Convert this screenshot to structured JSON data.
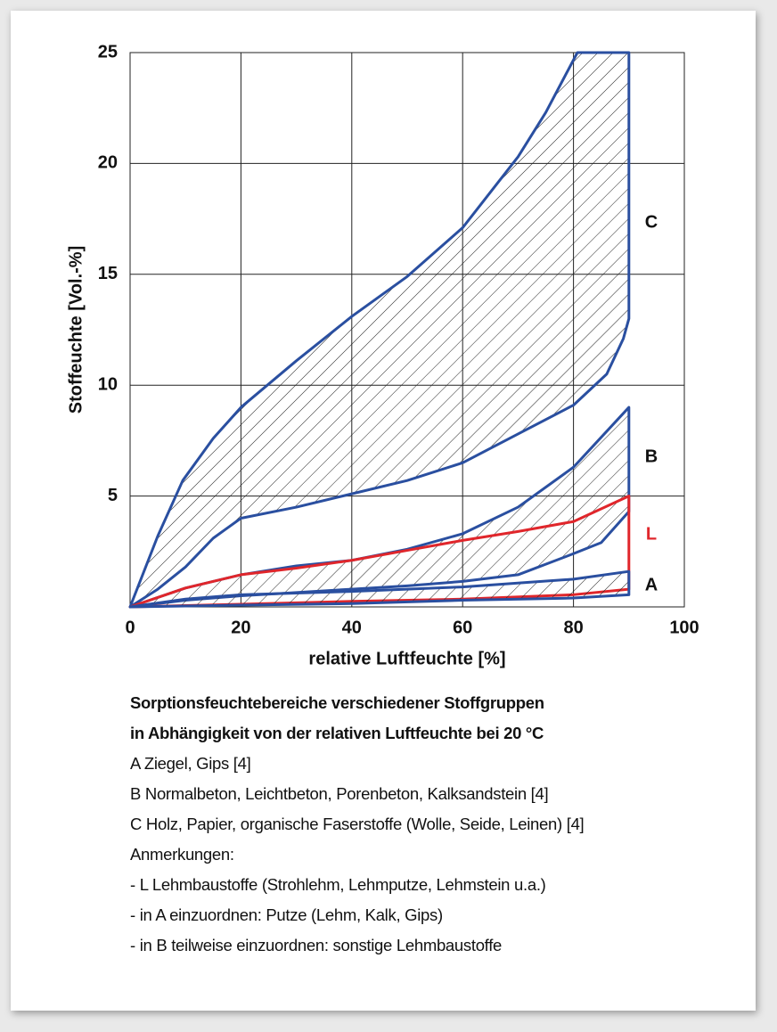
{
  "chart_data": {
    "type": "range-area",
    "xlabel": "relative Luftfeuchte [%]",
    "ylabel": "Stoffeuchte [Vol.-%]",
    "xlim": [
      0,
      100
    ],
    "xticks": [
      0,
      20,
      40,
      60,
      80,
      100
    ],
    "ylim": [
      0,
      25
    ],
    "yticks": [
      5,
      10,
      15,
      20,
      25
    ],
    "grid": true,
    "series": [
      {
        "name": "C",
        "color": "#2a4fa0",
        "hatch": true,
        "upper": {
          "x": [
            0,
            5,
            9.5,
            15,
            20,
            30,
            40,
            50,
            60,
            70,
            75,
            80.7,
            90
          ],
          "y": [
            0,
            3.2,
            5.7,
            7.6,
            9,
            11.1,
            13.1,
            14.9,
            17.1,
            20.3,
            22.3,
            25,
            25
          ]
        },
        "lower": {
          "x": [
            90,
            89,
            86,
            80,
            70,
            60,
            50,
            40,
            30,
            20,
            15,
            10,
            5,
            0
          ],
          "y": [
            13,
            12.1,
            10.5,
            9.1,
            7.8,
            6.5,
            5.7,
            5.1,
            4.5,
            4.0,
            3.1,
            1.8,
            0.8,
            0
          ]
        }
      },
      {
        "name": "B",
        "color": "#2a4fa0",
        "hatch": true,
        "upper": {
          "x": [
            0,
            10,
            20,
            30,
            40,
            50,
            60,
            70,
            80,
            90
          ],
          "y": [
            0,
            0.85,
            1.45,
            1.85,
            2.1,
            2.6,
            3.3,
            4.5,
            6.3,
            9.0
          ]
        },
        "lower": {
          "x": [
            90,
            85,
            80,
            70,
            60,
            50,
            40,
            30,
            20,
            10,
            0
          ],
          "y": [
            4.3,
            2.9,
            2.4,
            1.45,
            1.15,
            0.95,
            0.8,
            0.65,
            0.5,
            0.3,
            0
          ]
        }
      },
      {
        "name": "L",
        "color": "#e0262b",
        "hatch": false,
        "upper": {
          "x": [
            0,
            10,
            20,
            30,
            40,
            50,
            60,
            70,
            80,
            90
          ],
          "y": [
            0,
            0.85,
            1.45,
            1.75,
            2.1,
            2.55,
            3.0,
            3.4,
            3.85,
            5.0
          ]
        },
        "lower": {
          "x": [
            90,
            80,
            60,
            40,
            20,
            0
          ],
          "y": [
            0.8,
            0.55,
            0.35,
            0.25,
            0.12,
            0
          ]
        }
      },
      {
        "name": "A",
        "color": "#2a4fa0",
        "hatch": true,
        "upper": {
          "x": [
            0,
            10,
            20,
            40,
            60,
            80,
            90
          ],
          "y": [
            0,
            0.35,
            0.55,
            0.7,
            0.9,
            1.25,
            1.6
          ]
        },
        "lower": {
          "x": [
            90,
            80,
            60,
            40,
            20,
            0
          ],
          "y": [
            0.55,
            0.4,
            0.3,
            0.15,
            0.08,
            0
          ]
        }
      }
    ],
    "caption": {
      "title": [
        "Sorptionsfeuchtebereiche verschiedener Stoffgruppen",
        "in Abhängigkeit von der relativen Luftfeuchte bei 20 °C"
      ],
      "lines": [
        "A Ziegel, Gips [4]",
        "B Normalbeton, Leichtbeton, Porenbeton, Kalksandstein [4]",
        "C Holz, Papier, organische Faserstoffe (Wolle, Seide, Leinen) [4]",
        "Anmerkungen:",
        "- L Lehmbaustoffe (Strohlehm, Lehmputze, Lehmstein u.a.)",
        "- in A einzuordnen: Putze (Lehm, Kalk, Gips)",
        "- in B teilweise einzuordnen: sonstige Lehmbaustoffe"
      ]
    }
  }
}
